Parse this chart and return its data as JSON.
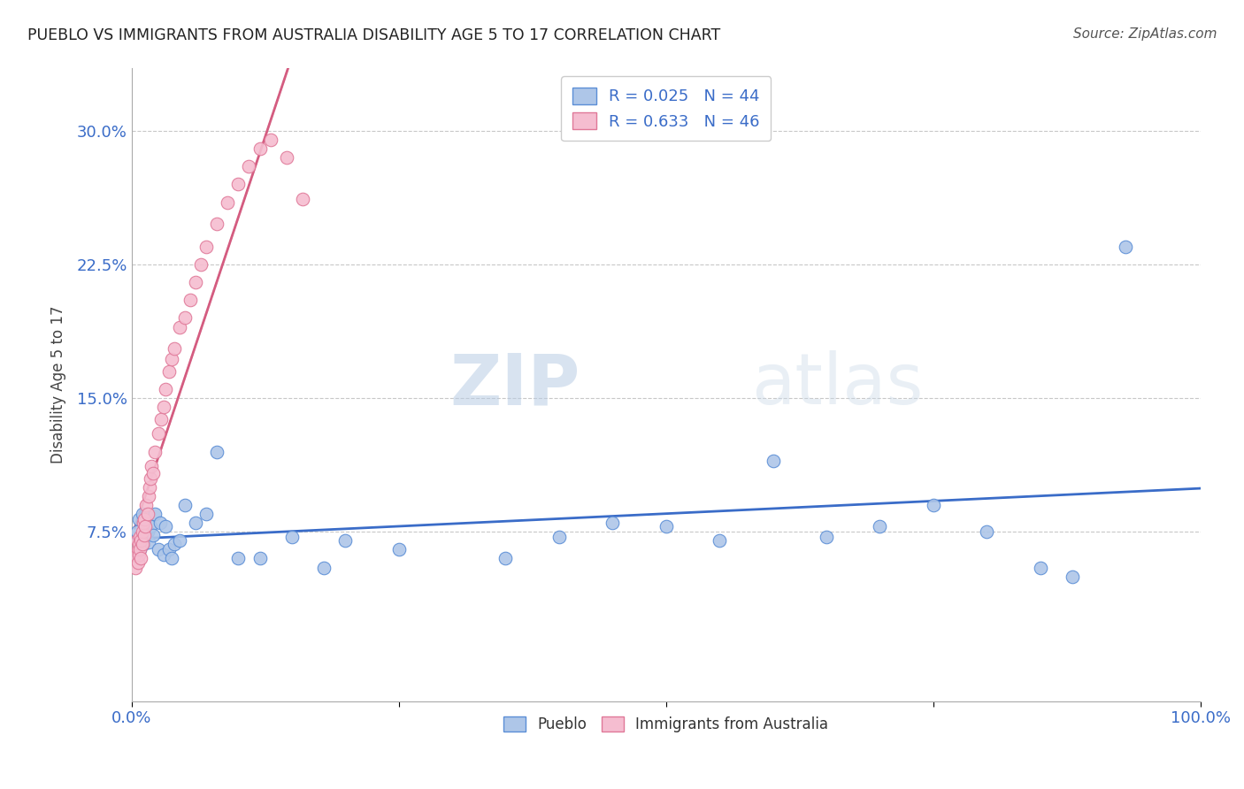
{
  "title": "PUEBLO VS IMMIGRANTS FROM AUSTRALIA DISABILITY AGE 5 TO 17 CORRELATION CHART",
  "source": "Source: ZipAtlas.com",
  "ylabel": "Disability Age 5 to 17",
  "xlim": [
    0.0,
    1.0
  ],
  "ylim": [
    -0.02,
    0.335
  ],
  "yticks": [
    0.0,
    0.075,
    0.15,
    0.225,
    0.3
  ],
  "ytick_labels": [
    "",
    "7.5%",
    "15.0%",
    "22.5%",
    "30.0%"
  ],
  "xticks": [
    0.0,
    0.25,
    0.5,
    0.75,
    1.0
  ],
  "xtick_labels": [
    "0.0%",
    "",
    "",
    "",
    "100.0%"
  ],
  "pueblo_color": "#aec6e8",
  "pueblo_edge_color": "#5b8ed6",
  "australia_color": "#f5bdd0",
  "australia_edge_color": "#e07898",
  "regression_blue_color": "#3a6cc8",
  "regression_pink_color": "#d45c80",
  "legend_R_blue": "R = 0.025",
  "legend_N_blue": "N = 44",
  "legend_R_pink": "R = 0.633",
  "legend_N_pink": "N = 46",
  "pueblo_x": [
    0.005,
    0.007,
    0.008,
    0.009,
    0.01,
    0.011,
    0.012,
    0.013,
    0.015,
    0.016,
    0.018,
    0.02,
    0.022,
    0.025,
    0.027,
    0.03,
    0.032,
    0.035,
    0.038,
    0.04,
    0.045,
    0.05,
    0.06,
    0.07,
    0.08,
    0.1,
    0.12,
    0.15,
    0.18,
    0.2,
    0.25,
    0.35,
    0.4,
    0.45,
    0.5,
    0.55,
    0.6,
    0.65,
    0.7,
    0.75,
    0.8,
    0.85,
    0.88,
    0.93
  ],
  "pueblo_y": [
    0.075,
    0.082,
    0.065,
    0.07,
    0.085,
    0.068,
    0.08,
    0.072,
    0.075,
    0.069,
    0.078,
    0.073,
    0.085,
    0.065,
    0.08,
    0.062,
    0.078,
    0.065,
    0.06,
    0.068,
    0.07,
    0.09,
    0.08,
    0.085,
    0.12,
    0.06,
    0.06,
    0.072,
    0.055,
    0.07,
    0.065,
    0.06,
    0.072,
    0.08,
    0.078,
    0.07,
    0.115,
    0.072,
    0.078,
    0.09,
    0.075,
    0.055,
    0.05,
    0.235
  ],
  "australia_x": [
    0.003,
    0.004,
    0.005,
    0.006,
    0.006,
    0.007,
    0.007,
    0.008,
    0.008,
    0.009,
    0.009,
    0.01,
    0.01,
    0.011,
    0.012,
    0.012,
    0.013,
    0.014,
    0.015,
    0.016,
    0.017,
    0.018,
    0.019,
    0.02,
    0.022,
    0.025,
    0.028,
    0.03,
    0.032,
    0.035,
    0.038,
    0.04,
    0.045,
    0.05,
    0.055,
    0.06,
    0.065,
    0.07,
    0.08,
    0.09,
    0.1,
    0.11,
    0.12,
    0.13,
    0.145,
    0.16
  ],
  "australia_y": [
    0.062,
    0.055,
    0.07,
    0.058,
    0.065,
    0.068,
    0.062,
    0.072,
    0.065,
    0.07,
    0.06,
    0.075,
    0.068,
    0.08,
    0.073,
    0.082,
    0.078,
    0.09,
    0.085,
    0.095,
    0.1,
    0.105,
    0.112,
    0.108,
    0.12,
    0.13,
    0.138,
    0.145,
    0.155,
    0.165,
    0.172,
    0.178,
    0.19,
    0.195,
    0.205,
    0.215,
    0.225,
    0.235,
    0.248,
    0.26,
    0.27,
    0.28,
    0.29,
    0.295,
    0.285,
    0.262
  ],
  "watermark_zip": "ZIP",
  "watermark_atlas": "atlas",
  "background_color": "#ffffff",
  "grid_color": "#c8c8c8",
  "title_color": "#222222",
  "source_color": "#555555",
  "tick_color": "#3a6cc8"
}
